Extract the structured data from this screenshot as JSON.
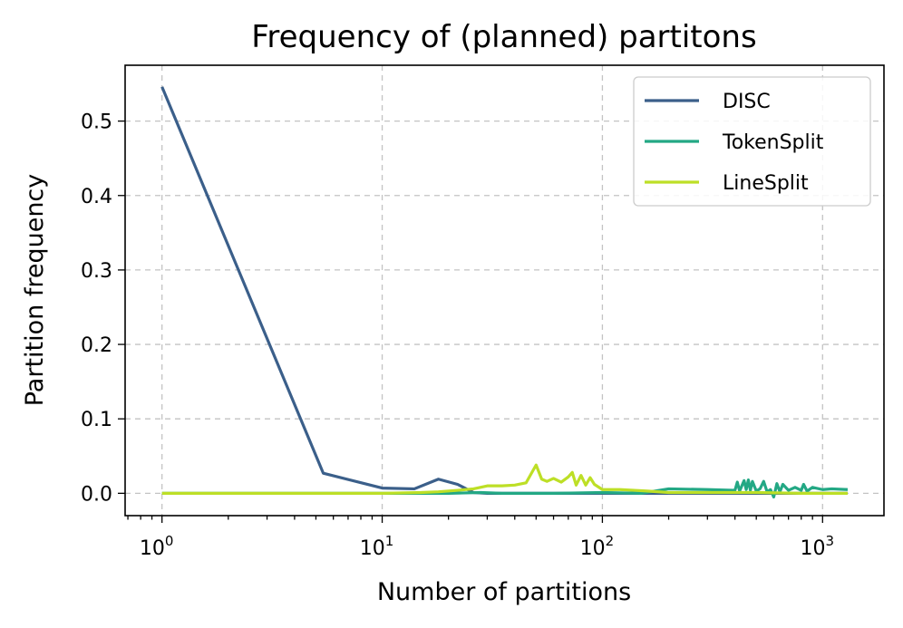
{
  "chart_data": {
    "type": "line",
    "title": "Frequency of (planned) partitons",
    "xlabel": "Number of partitions",
    "ylabel": "Partition frequency",
    "xscale": "log",
    "xlim": [
      0.68,
      1900
    ],
    "ylim": [
      -0.03,
      0.575
    ],
    "x_major_ticks": [
      {
        "base": "10",
        "exp": "0",
        "value": 1
      },
      {
        "base": "10",
        "exp": "1",
        "value": 10
      },
      {
        "base": "10",
        "exp": "2",
        "value": 100
      },
      {
        "base": "10",
        "exp": "3",
        "value": 1000
      }
    ],
    "y_ticks": [
      {
        "label": "0.0",
        "value": 0.0
      },
      {
        "label": "0.1",
        "value": 0.1
      },
      {
        "label": "0.2",
        "value": 0.2
      },
      {
        "label": "0.3",
        "value": 0.3
      },
      {
        "label": "0.4",
        "value": 0.4
      },
      {
        "label": "0.5",
        "value": 0.5
      }
    ],
    "grid": true,
    "legend_position": "top-right",
    "series": [
      {
        "name": "DISC",
        "color": "#3b5f8a",
        "x": [
          1,
          5.4,
          10,
          14,
          18,
          22,
          26,
          30,
          50,
          100,
          200,
          500,
          1000,
          1300
        ],
        "y": [
          0.546,
          0.027,
          0.007,
          0.006,
          0.019,
          0.012,
          0.001,
          0.0,
          0.0,
          0.0,
          0.0,
          0.0,
          0.0,
          0.0
        ]
      },
      {
        "name": "TokenSplit",
        "color": "#23a884",
        "x": [
          1,
          10,
          20,
          28,
          35,
          60,
          100,
          150,
          200,
          300,
          400,
          410,
          420,
          440,
          450,
          460,
          470,
          480,
          500,
          520,
          540,
          560,
          580,
          600,
          620,
          640,
          660,
          700,
          750,
          800,
          820,
          850,
          900,
          1000,
          1100,
          1300
        ],
        "y": [
          0.0,
          0.0,
          0.0,
          0.001,
          0.0,
          0.0,
          0.001,
          0.0,
          0.006,
          0.005,
          0.004,
          0.015,
          0.003,
          0.017,
          0.005,
          0.018,
          0.004,
          0.016,
          0.003,
          0.006,
          0.016,
          0.002,
          0.005,
          -0.005,
          0.013,
          0.002,
          0.012,
          0.004,
          0.008,
          0.004,
          0.012,
          0.003,
          0.008,
          0.005,
          0.006,
          0.005
        ]
      },
      {
        "name": "LineSplit",
        "color": "#bddf26",
        "x": [
          1,
          5,
          10,
          15,
          18,
          22,
          26,
          30,
          35,
          40,
          45,
          50,
          53,
          56,
          60,
          65,
          70,
          73,
          76,
          80,
          84,
          88,
          92,
          100,
          120,
          140,
          160,
          200,
          300,
          500,
          800,
          1000,
          1300
        ],
        "y": [
          0.0,
          0.0,
          0.0,
          0.001,
          0.002,
          0.004,
          0.006,
          0.01,
          0.01,
          0.011,
          0.014,
          0.038,
          0.019,
          0.016,
          0.02,
          0.015,
          0.022,
          0.028,
          0.011,
          0.024,
          0.011,
          0.021,
          0.012,
          0.005,
          0.005,
          0.004,
          0.003,
          0.001,
          0.001,
          0.001,
          0.0,
          0.0,
          0.0
        ]
      }
    ]
  }
}
